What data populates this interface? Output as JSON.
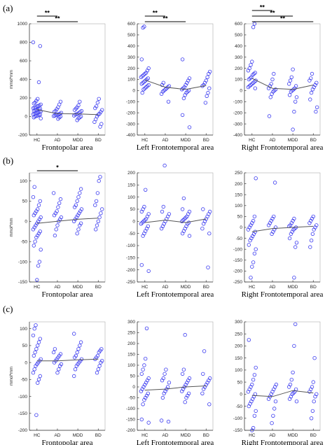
{
  "row_labels": [
    "(a)",
    "(b)",
    "(c)"
  ],
  "chart_data": [
    {
      "type": "scatter",
      "row": 0,
      "col": 0,
      "xlabel": "Frontopolar area",
      "ylabel": "mmol*mm",
      "categories": [
        "HC",
        "AD",
        "MDD",
        "BD"
      ],
      "ylim": [
        -200,
        1000
      ],
      "yticks": [
        -200,
        0,
        200,
        400,
        600,
        800,
        1000
      ],
      "means": [
        75,
        30,
        28,
        20
      ],
      "points": [
        [
          800,
          760,
          370,
          190,
          170,
          150,
          140,
          130,
          120,
          115,
          110,
          100,
          95,
          90,
          85,
          80,
          75,
          70,
          65,
          60,
          55,
          50,
          45,
          40,
          35,
          30,
          25,
          20,
          15,
          10,
          5,
          0,
          -10,
          -20
        ],
        [
          160,
          130,
          100,
          80,
          60,
          50,
          40,
          30,
          25,
          20,
          15,
          10,
          5,
          0,
          -10,
          -25
        ],
        [
          160,
          120,
          100,
          85,
          70,
          60,
          50,
          40,
          30,
          25,
          20,
          10,
          0,
          -10,
          -20,
          -40
        ],
        [
          190,
          150,
          110,
          90,
          70,
          50,
          30,
          20,
          0,
          -30,
          -60,
          -80,
          -110
        ]
      ],
      "significance": [
        {
          "label": "**",
          "from": "HC",
          "to": "AD"
        },
        {
          "label": "**",
          "from": "HC",
          "to": "MDD"
        }
      ]
    },
    {
      "type": "scatter",
      "row": 0,
      "col": 1,
      "xlabel": "Left Frontotemporal area",
      "ylabel": "",
      "categories": [
        "HC",
        "AD",
        "MDD",
        "BD"
      ],
      "ylim": [
        -400,
        600
      ],
      "yticks": [
        -400,
        -300,
        -200,
        -100,
        0,
        100,
        200,
        300,
        400,
        500,
        600
      ],
      "means": [
        95,
        30,
        10,
        45
      ],
      "points": [
        [
          575,
          565,
          280,
          200,
          180,
          160,
          150,
          140,
          130,
          120,
          110,
          100,
          90,
          80,
          70,
          60,
          50,
          40,
          30,
          20,
          10,
          -20
        ],
        [
          70,
          50,
          40,
          30,
          20,
          10,
          0,
          -10,
          -30,
          -100
        ],
        [
          280,
          110,
          90,
          70,
          50,
          30,
          20,
          10,
          0,
          -10,
          -20,
          -40,
          -70,
          -220,
          -330
        ],
        [
          170,
          150,
          120,
          90,
          70,
          50,
          40,
          20,
          -20,
          -50,
          -110
        ]
      ],
      "significance": [
        {
          "label": "**",
          "from": "HC",
          "to": "AD"
        },
        {
          "label": "**",
          "from": "HC",
          "to": "MDD"
        }
      ]
    },
    {
      "type": "scatter",
      "row": 0,
      "col": 2,
      "xlabel": "Right Frontotemporal area",
      "ylabel": "",
      "categories": [
        "HC",
        "AD",
        "MDD",
        "BD"
      ],
      "ylim": [
        -400,
        600
      ],
      "yticks": [
        -400,
        -300,
        -200,
        -100,
        0,
        100,
        200,
        300,
        400,
        500,
        600
      ],
      "means": [
        110,
        20,
        10,
        50
      ],
      "points": [
        [
          600,
          570,
          260,
          230,
          200,
          180,
          160,
          150,
          140,
          120,
          110,
          100,
          90,
          80,
          70,
          60,
          50,
          40,
          30,
          20
        ],
        [
          150,
          100,
          60,
          40,
          20,
          10,
          0,
          -10,
          -30,
          -60,
          -230
        ],
        [
          190,
          120,
          90,
          60,
          40,
          20,
          10,
          0,
          -10,
          -40,
          -60,
          -100,
          -190,
          -350
        ],
        [
          150,
          110,
          90,
          70,
          50,
          30,
          10,
          -20,
          -80,
          -150,
          -190
        ]
      ],
      "significance": [
        {
          "label": "**",
          "from": "HC",
          "to": "AD"
        },
        {
          "label": "**",
          "from": "HC",
          "to": "MDD"
        },
        {
          "label": "**",
          "from": "HC",
          "to": "BD"
        }
      ]
    },
    {
      "type": "scatter",
      "row": 1,
      "col": 0,
      "xlabel": "Frontopolar area",
      "ylabel": "mmol*mm",
      "categories": [
        "HC",
        "AD",
        "MDD",
        "BD"
      ],
      "ylim": [
        -150,
        120
      ],
      "yticks": [
        -150,
        -100,
        -50,
        0,
        50,
        100
      ],
      "means": [
        -5,
        0,
        5,
        8
      ],
      "points": [
        [
          85,
          60,
          50,
          40,
          30,
          25,
          20,
          15,
          10,
          5,
          0,
          -5,
          -10,
          -15,
          -20,
          -25,
          -30,
          -35,
          -40,
          -50,
          -60,
          -70,
          -100,
          -110,
          -145
        ],
        [
          70,
          55,
          45,
          35,
          25,
          20,
          15,
          10,
          5,
          0,
          -10,
          -20,
          -35
        ],
        [
          80,
          70,
          60,
          50,
          40,
          35,
          30,
          25,
          20,
          15,
          10,
          5,
          0,
          -5,
          -10,
          -20,
          -30
        ],
        [
          110,
          100,
          70,
          50,
          40,
          30,
          20,
          10,
          0,
          -10,
          -20
        ]
      ],
      "significance": [
        {
          "label": "*",
          "from": "HC",
          "to": "MDD"
        }
      ]
    },
    {
      "type": "scatter",
      "row": 1,
      "col": 1,
      "xlabel": "Left Frontotemporal area",
      "ylabel": "",
      "categories": [
        "HC",
        "AD",
        "MDD",
        "BD"
      ],
      "ylim": [
        -250,
        200
      ],
      "yticks": [
        -250,
        -200,
        -150,
        -100,
        -50,
        0,
        50,
        100,
        150,
        200
      ],
      "means": [
        -5,
        5,
        -5,
        10
      ],
      "points": [
        [
          130,
          60,
          50,
          40,
          30,
          20,
          10,
          5,
          0,
          -5,
          -10,
          -20,
          -30,
          -40,
          -50,
          -60,
          -180,
          -205
        ],
        [
          230,
          60,
          40,
          30,
          20,
          10,
          0,
          -10,
          -20,
          -30
        ],
        [
          95,
          50,
          40,
          30,
          20,
          15,
          10,
          5,
          0,
          -5,
          -10,
          -20,
          -30,
          -40,
          -50,
          -60
        ],
        [
          50,
          40,
          30,
          20,
          10,
          0,
          -10,
          -30,
          -50,
          -190
        ]
      ],
      "significance": []
    },
    {
      "type": "scatter",
      "row": 1,
      "col": 2,
      "xlabel": "Right Frontotemporal area",
      "ylabel": "",
      "categories": [
        "HC",
        "AD",
        "MDD",
        "BD"
      ],
      "ylim": [
        -250,
        250
      ],
      "yticks": [
        -250,
        -200,
        -150,
        -100,
        -50,
        0,
        50,
        100,
        150,
        200,
        250
      ],
      "means": [
        -20,
        -5,
        0,
        5
      ],
      "points": [
        [
          225,
          50,
          30,
          20,
          10,
          0,
          -10,
          -20,
          -30,
          -40,
          -50,
          -60,
          -80,
          -100,
          -120,
          -160,
          -180,
          -230
        ],
        [
          205,
          50,
          40,
          30,
          20,
          10,
          0,
          -10,
          -20,
          -30
        ],
        [
          40,
          30,
          20,
          10,
          5,
          0,
          -5,
          -10,
          -20,
          -30,
          -50,
          -70,
          -90,
          -230
        ],
        [
          50,
          40,
          30,
          20,
          10,
          0,
          -10,
          -30,
          -60,
          -90
        ]
      ],
      "significance": []
    },
    {
      "type": "scatter",
      "row": 2,
      "col": 0,
      "xlabel": "Frontopolar area",
      "ylabel": "mmol*mm",
      "categories": [
        "HC",
        "AD",
        "MDD",
        "BD"
      ],
      "ylim": [
        -200,
        120
      ],
      "yticks": [
        -200,
        -150,
        -100,
        -50,
        0,
        50,
        100
      ],
      "means": [
        5,
        5,
        8,
        10
      ],
      "points": [
        [
          110,
          100,
          80,
          70,
          60,
          50,
          40,
          30,
          20,
          10,
          5,
          0,
          -5,
          -10,
          -20,
          -30,
          -40,
          -50,
          -60,
          -155
        ],
        [
          40,
          30,
          25,
          20,
          15,
          10,
          5,
          0,
          -5,
          -10,
          -20,
          -30
        ],
        [
          85,
          60,
          50,
          40,
          30,
          20,
          15,
          10,
          5,
          0,
          -5,
          -10,
          -20,
          -40
        ],
        [
          40,
          35,
          30,
          20,
          15,
          10,
          5,
          0,
          -10,
          -20,
          -30
        ]
      ],
      "significance": []
    },
    {
      "type": "scatter",
      "row": 2,
      "col": 1,
      "xlabel": "Left Frontotemporal area",
      "ylabel": "",
      "categories": [
        "HC",
        "AD",
        "MDD",
        "BD"
      ],
      "ylim": [
        -200,
        300
      ],
      "yticks": [
        -200,
        -150,
        -100,
        -50,
        0,
        50,
        100,
        150,
        200,
        250,
        300
      ],
      "means": [
        -15,
        -10,
        0,
        5
      ],
      "points": [
        [
          270,
          130,
          100,
          80,
          60,
          40,
          30,
          20,
          10,
          0,
          -10,
          -20,
          -30,
          -40,
          -50,
          -60,
          -80,
          -150,
          -165
        ],
        [
          80,
          60,
          40,
          30,
          20,
          0,
          -10,
          -20,
          -30,
          -50,
          -155,
          -160
        ],
        [
          240,
          80,
          60,
          40,
          30,
          20,
          10,
          0,
          -10,
          -20,
          -30,
          -40,
          -50,
          -70
        ],
        [
          165,
          60,
          40,
          30,
          20,
          10,
          0,
          -10,
          -30,
          -80
        ]
      ],
      "significance": []
    },
    {
      "type": "scatter",
      "row": 2,
      "col": 2,
      "xlabel": "Right Frontotemporal area",
      "ylabel": "",
      "categories": [
        "HC",
        "AD",
        "MDD",
        "BD"
      ],
      "ylim": [
        -150,
        300
      ],
      "yticks": [
        -150,
        -100,
        -50,
        0,
        50,
        100,
        150,
        200,
        250,
        300
      ],
      "means": [
        -5,
        -10,
        15,
        5
      ],
      "points": [
        [
          225,
          110,
          80,
          60,
          40,
          30,
          20,
          10,
          0,
          -10,
          -20,
          -30,
          -40,
          -50,
          -70,
          -90,
          -140,
          -150
        ],
        [
          40,
          30,
          20,
          10,
          0,
          -10,
          -20,
          -30,
          -60,
          -90,
          -120
        ],
        [
          290,
          200,
          90,
          60,
          40,
          30,
          20,
          10,
          5,
          0,
          -10,
          -20,
          -30
        ],
        [
          150,
          50,
          30,
          20,
          10,
          0,
          -10,
          -30,
          -70,
          -100
        ]
      ],
      "significance": []
    }
  ]
}
